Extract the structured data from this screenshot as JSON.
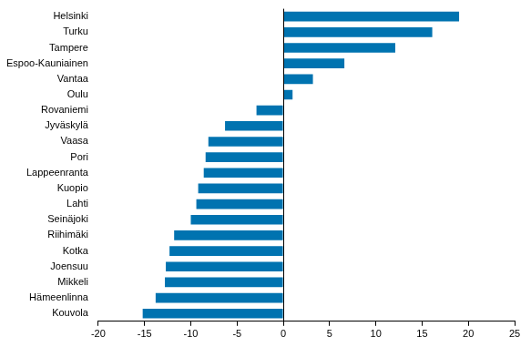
{
  "chart_data": {
    "type": "bar",
    "orientation": "horizontal",
    "categories": [
      "Helsinki",
      "Turku",
      "Tampere",
      "Espoo-Kauniainen",
      "Vantaa",
      "Oulu",
      "Rovaniemi",
      "Jyväskylä",
      "Vaasa",
      "Pori",
      "Lappeenranta",
      "Kuopio",
      "Lahti",
      "Seinäjoki",
      "Riihimäki",
      "Kotka",
      "Joensuu",
      "Mikkeli",
      "Hämeenlinna",
      "Kouvola"
    ],
    "values": [
      19.0,
      16.1,
      12.1,
      6.6,
      3.2,
      1.0,
      -2.9,
      -6.3,
      -8.1,
      -8.4,
      -8.6,
      -9.2,
      -9.4,
      -10.0,
      -11.8,
      -12.3,
      -12.7,
      -12.8,
      -13.8,
      -15.2
    ],
    "color": "#0073b0",
    "xlim": [
      -20,
      25
    ],
    "xticks": [
      -20,
      -15,
      -10,
      -5,
      0,
      5,
      10,
      15,
      20,
      25
    ],
    "grid": false
  }
}
